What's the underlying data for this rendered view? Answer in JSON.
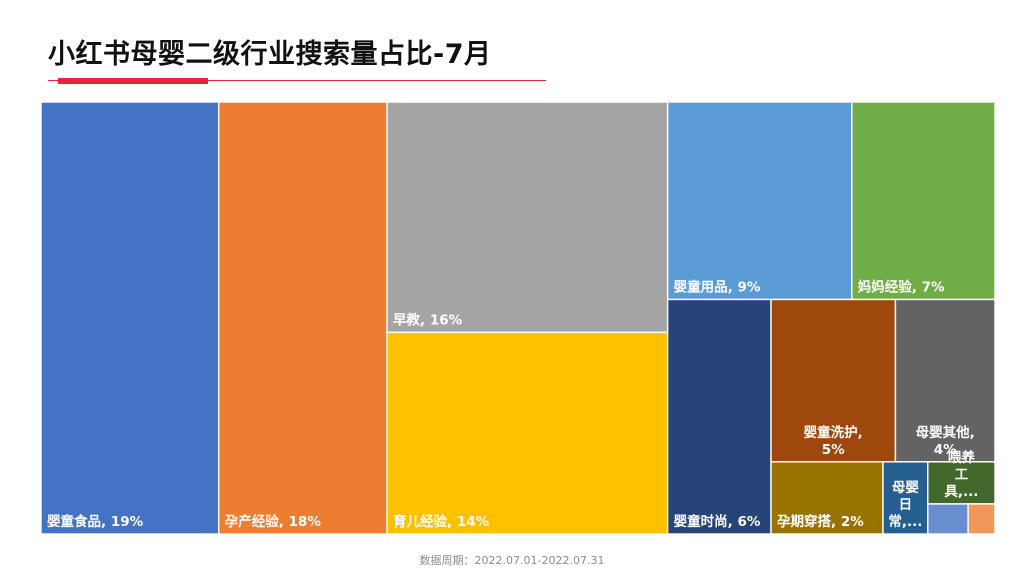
{
  "page": {
    "title": "小红书母婴二级行业搜索量占比-7月",
    "footer": "数据周期：2022.07.01-2022.07.31",
    "accent_color": "#e8243c"
  },
  "chart_data": {
    "type": "treemap",
    "title": "小红书母婴二级行业搜索量占比-7月",
    "unit": "%",
    "items": [
      {
        "name": "婴童食品",
        "label": "婴童食品, 19%",
        "value": 19,
        "color": "#4472C4"
      },
      {
        "name": "孕产经验",
        "label": "孕产经验, 18%",
        "value": 18,
        "color": "#ED7D31"
      },
      {
        "name": "早教",
        "label": "早教, 16%",
        "value": 16,
        "color": "#A5A5A5"
      },
      {
        "name": "育儿经验",
        "label": "育儿经验, 14%",
        "value": 14,
        "color": "#FFC000"
      },
      {
        "name": "婴童用品",
        "label": "婴童用品, 9%",
        "value": 9,
        "color": "#5B9BD5"
      },
      {
        "name": "妈妈经验",
        "label": "妈妈经验, 7%",
        "value": 7,
        "color": "#70AD47"
      },
      {
        "name": "婴童时尚",
        "label": "婴童时尚, 6%",
        "value": 6,
        "color": "#264478"
      },
      {
        "name": "婴童洗护",
        "label": "婴童洗护, 5%",
        "label_lines": [
          "婴童洗护,",
          "5%"
        ],
        "value": 5,
        "color": "#9E480E"
      },
      {
        "name": "母婴其他",
        "label": "母婴其他, 4%",
        "label_lines": [
          "母婴其他,",
          "4%"
        ],
        "value": 4,
        "color": "#636363"
      },
      {
        "name": "孕期穿搭",
        "label": "孕期穿搭, 2%",
        "value": 2,
        "color": "#997300"
      },
      {
        "name": "母婴日常",
        "label": "母婴日常,...",
        "label_lines": [
          "母婴",
          "日",
          "常,..."
        ],
        "value": 0.8,
        "color": "#255E91"
      },
      {
        "name": "喂养工具",
        "label": "喂养工具...",
        "label_lines": [
          "喂养",
          "工",
          "具,..."
        ],
        "value": 0.7,
        "color": "#43682B"
      },
      {
        "name": "other-1",
        "value": 0.3,
        "color": "#698ED0"
      },
      {
        "name": "other-2",
        "value": 0.2,
        "color": "#F1975A"
      }
    ]
  }
}
